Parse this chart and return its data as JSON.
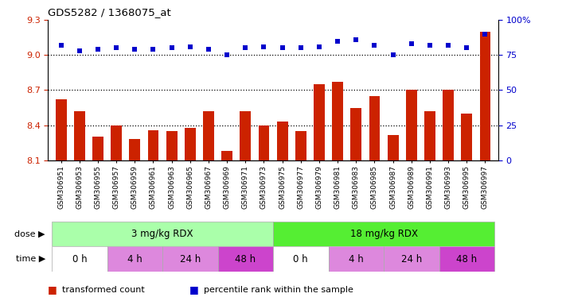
{
  "title": "GDS5282 / 1368075_at",
  "samples": [
    "GSM306951",
    "GSM306953",
    "GSM306955",
    "GSM306957",
    "GSM306959",
    "GSM306961",
    "GSM306963",
    "GSM306965",
    "GSM306967",
    "GSM306969",
    "GSM306971",
    "GSM306973",
    "GSM306975",
    "GSM306977",
    "GSM306979",
    "GSM306981",
    "GSM306983",
    "GSM306985",
    "GSM306987",
    "GSM306989",
    "GSM306991",
    "GSM306993",
    "GSM306995",
    "GSM306997"
  ],
  "transformed_count": [
    8.62,
    8.52,
    8.3,
    8.4,
    8.28,
    8.36,
    8.35,
    8.38,
    8.52,
    8.18,
    8.52,
    8.4,
    8.43,
    8.35,
    8.75,
    8.77,
    8.55,
    8.65,
    8.32,
    8.7,
    8.52,
    8.7,
    8.5,
    9.2
  ],
  "percentile_rank": [
    82,
    78,
    79,
    80,
    79,
    79,
    80,
    81,
    79,
    75,
    80,
    81,
    80,
    80,
    81,
    85,
    86,
    82,
    75,
    83,
    82,
    82,
    80,
    90
  ],
  "bar_color": "#cc2200",
  "dot_color": "#0000cc",
  "ylim_left": [
    8.1,
    9.3
  ],
  "ylim_right": [
    0,
    100
  ],
  "yticks_left": [
    8.1,
    8.4,
    8.7,
    9.0,
    9.3
  ],
  "yticks_right": [
    0,
    25,
    50,
    75,
    100
  ],
  "ytick_labels_left": [
    "8.1",
    "8.4",
    "8.7",
    "9.0",
    "9.3"
  ],
  "ytick_labels_right": [
    "0",
    "25",
    "50",
    "75",
    "100%"
  ],
  "hlines": [
    9.0,
    8.7,
    8.4
  ],
  "dose_groups": [
    {
      "label": "3 mg/kg RDX",
      "start": 0,
      "end": 12,
      "color": "#aaffaa"
    },
    {
      "label": "18 mg/kg RDX",
      "start": 12,
      "end": 24,
      "color": "#55ee33"
    }
  ],
  "time_groups": [
    {
      "label": "0 h",
      "start": 0,
      "end": 3,
      "color": "#ffffff"
    },
    {
      "label": "4 h",
      "start": 3,
      "end": 6,
      "color": "#dd88dd"
    },
    {
      "label": "24 h",
      "start": 6,
      "end": 9,
      "color": "#dd88dd"
    },
    {
      "label": "48 h",
      "start": 9,
      "end": 12,
      "color": "#cc44cc"
    },
    {
      "label": "0 h",
      "start": 12,
      "end": 15,
      "color": "#ffffff"
    },
    {
      "label": "4 h",
      "start": 15,
      "end": 18,
      "color": "#dd88dd"
    },
    {
      "label": "24 h",
      "start": 18,
      "end": 21,
      "color": "#dd88dd"
    },
    {
      "label": "48 h",
      "start": 21,
      "end": 24,
      "color": "#cc44cc"
    }
  ],
  "legend_items": [
    {
      "label": "transformed count",
      "color": "#cc2200"
    },
    {
      "label": "percentile rank within the sample",
      "color": "#0000cc"
    }
  ],
  "bg_color": "#ffffff"
}
